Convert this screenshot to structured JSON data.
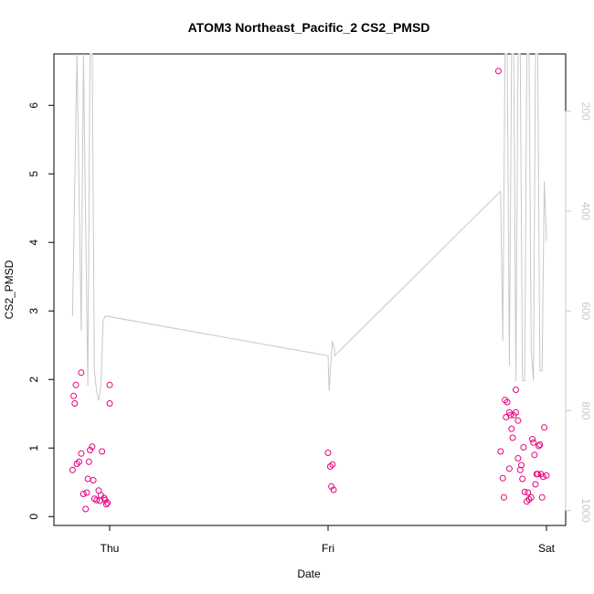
{
  "chart_data": {
    "type": "scatter",
    "title": "ATOM3 Northeast_Pacific_2 CS2_PMSD",
    "xlabel": "Date",
    "ylabel": "CS2_PMSD",
    "x_ticks": [
      "Thu",
      "Fri",
      "Sat"
    ],
    "x_range_days": [
      -0.2,
      2.0
    ],
    "ylim": [
      -0.13,
      6.75
    ],
    "y_ticks": [
      0,
      1,
      2,
      3,
      4,
      5,
      6
    ],
    "y2_ticks": [
      200,
      400,
      600,
      800,
      1000
    ],
    "y2_lim": [
      1030,
      85
    ],
    "y2_reversed": true,
    "grid": false,
    "legend": "none",
    "colors": {
      "points": "#e6007e",
      "depth_line": "#c8c8c8",
      "axes": "#000000",
      "y2_axis": "#c8c8c8"
    },
    "series": [
      {
        "type": "points",
        "x": [
          -0.17,
          -0.165,
          -0.16,
          -0.155,
          -0.15,
          -0.14,
          -0.13,
          -0.13,
          -0.12,
          -0.11,
          -0.105,
          -0.1,
          -0.095,
          -0.09,
          -0.08,
          -0.075,
          -0.07,
          -0.06,
          -0.05,
          -0.045,
          -0.04,
          -0.035,
          0.0,
          0.0,
          -0.01,
          -0.015,
          -0.02,
          -0.025,
          1.0,
          1.01,
          1.015,
          1.02,
          1.025,
          1.78,
          1.79,
          1.8,
          1.805,
          1.81,
          1.815,
          1.82,
          1.83,
          1.83,
          1.835,
          1.84,
          1.845,
          1.85,
          1.86,
          1.86,
          1.87,
          1.87,
          1.88,
          1.885,
          1.89,
          1.895,
          1.9,
          1.91,
          1.915,
          1.92,
          1.93,
          1.935,
          1.94,
          1.945,
          1.95,
          1.955,
          1.96,
          1.965,
          1.97,
          1.975,
          1.98,
          1.985,
          1.99,
          2.0
        ],
        "y": [
          0.68,
          1.76,
          1.65,
          1.92,
          0.77,
          0.8,
          2.1,
          0.92,
          0.33,
          0.11,
          0.35,
          0.55,
          0.8,
          0.97,
          1.02,
          0.53,
          0.26,
          0.24,
          0.38,
          0.23,
          0.31,
          0.95,
          1.92,
          1.65,
          0.2,
          0.18,
          0.24,
          0.27,
          0.93,
          0.73,
          0.44,
          0.76,
          0.39,
          6.5,
          0.95,
          0.56,
          0.28,
          1.7,
          1.45,
          1.67,
          0.7,
          1.52,
          1.48,
          1.28,
          1.15,
          1.48,
          1.85,
          1.52,
          1.4,
          0.85,
          0.68,
          0.75,
          0.55,
          1.01,
          0.36,
          0.22,
          0.35,
          0.25,
          0.28,
          1.13,
          1.08,
          0.9,
          0.47,
          0.62,
          0.62,
          1.03,
          1.05,
          0.62,
          0.28,
          0.58,
          1.3,
          0.6
        ]
      },
      {
        "type": "depth_line",
        "name": "",
        "x": [
          -0.17,
          -0.15,
          -0.13,
          -0.12,
          -0.1,
          -0.09,
          -0.08,
          -0.07,
          -0.06,
          -0.05,
          -0.04,
          -0.03,
          -0.02,
          1.0,
          1.005,
          1.01,
          1.02,
          1.03,
          1.03,
          1.79,
          1.8,
          1.81,
          1.82,
          1.83,
          1.84,
          1.85,
          1.86,
          1.87,
          1.88,
          1.89,
          1.9,
          1.91,
          1.92,
          1.93,
          1.94,
          1.95,
          1.96,
          1.97,
          1.98,
          1.99,
          2.0,
          2.0
        ],
        "y": [
          610,
          85,
          640,
          85,
          750,
          85,
          85,
          720,
          760,
          780,
          750,
          620,
          610,
          690,
          760,
          720,
          660,
          680,
          690,
          360,
          660,
          85,
          85,
          710,
          85,
          85,
          740,
          85,
          85,
          740,
          740,
          85,
          85,
          680,
          740,
          85,
          85,
          720,
          720,
          340,
          460,
          460
        ]
      }
    ]
  }
}
